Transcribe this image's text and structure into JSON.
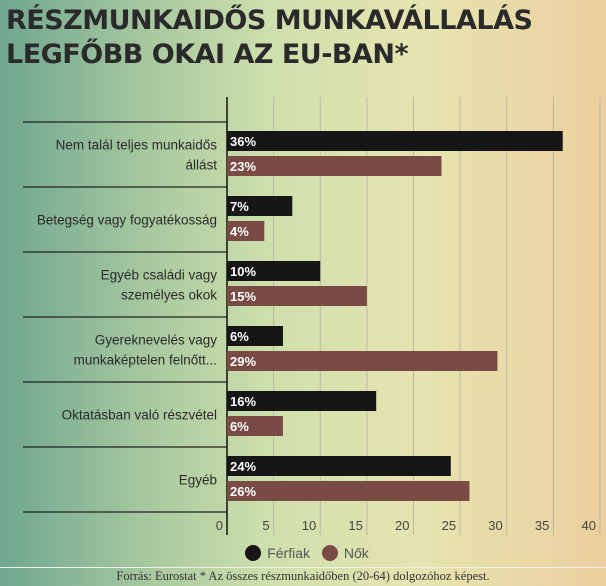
{
  "chart_data": {
    "type": "bar",
    "orientation": "horizontal",
    "title": "RÉSZMUNKAIDŐS MUNKAVÁLLALÁS LEGFŐBB OKAI AZ EU-BAN*",
    "categories": [
      [
        "Nem talál teljes munkaidős",
        "állást"
      ],
      [
        "Betegség vagy fogyatékosság"
      ],
      [
        "Egyéb családi vagy",
        "személyes okok"
      ],
      [
        "Gyereknevelés vagy",
        "munkaképtelen felnőtt..."
      ],
      [
        "Oktatásban való részvétel"
      ],
      [
        "Egyéb"
      ]
    ],
    "series": [
      {
        "name": "Férfiak",
        "color": "#161616",
        "values": [
          36,
          7,
          10,
          6,
          16,
          24
        ],
        "labels": [
          "36%",
          "7%",
          "10%",
          "6%",
          "16%",
          "24%"
        ]
      },
      {
        "name": "Nők",
        "color": "#7a4a45",
        "values": [
          23,
          4,
          15,
          29,
          6,
          26
        ],
        "labels": [
          "23%",
          "4%",
          "15%",
          "29%",
          "6%",
          "26%"
        ]
      }
    ],
    "xlim": [
      0,
      40
    ],
    "xticks": [
      "0",
      "5",
      "10",
      "15",
      "20",
      "25",
      "30",
      "35",
      "40"
    ],
    "grid": true,
    "legend": "bottom"
  },
  "footer": "Forrás: Eurostat * Az összes részmunkaidőben (20-64) dolgozóhoz képest."
}
